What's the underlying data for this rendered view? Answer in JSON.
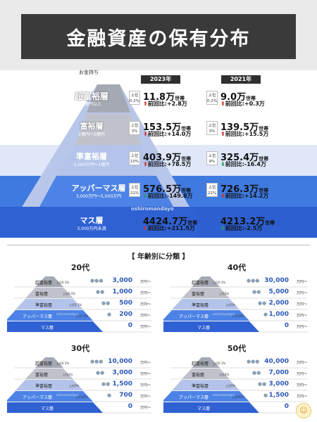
{
  "title": "金融資産の保有分布",
  "okane_label": "お金持ち",
  "years": [
    "2023年",
    "2021年"
  ],
  "watermark": "oshiromandayo",
  "tiers": [
    {
      "name": "超富裕層",
      "sub": "5億円以上",
      "r23": "上位\n0.2%",
      "v23": "11.8万",
      "c23": "前回比:+2.8万",
      "d23": "up",
      "r21": "上位\n0.2%",
      "v21": "9.0万",
      "c21": "前回比:+0.3万",
      "d21": "up"
    },
    {
      "name": "富裕層",
      "sub": "1億円〜5億円",
      "r23": "上位\n3%",
      "v23": "153.5万",
      "c23": "前回比:+14.0万",
      "d23": "up",
      "r21": "上位\n3%",
      "v21": "139.5万",
      "c21": "前回比:+15.5万",
      "d21": "up"
    },
    {
      "name": "準富裕層",
      "sub": "5,000万円〜1億円",
      "r23": "上位\n10%",
      "v23": "403.9万",
      "c23": "前回比:+78.5万",
      "d23": "up",
      "r21": "上位\n9%",
      "v21": "325.4万",
      "c21": "前回比:-16.4万",
      "d21": "dn"
    },
    {
      "name": "アッパーマス層",
      "sub": "3,000万円〜5,000万円",
      "r23": "上位\n21%",
      "v23": "576.5万",
      "c23": "前回比:-149.8万",
      "d23": "dn",
      "r21": "上位\n22%",
      "v21": "726.3万",
      "c21": "前回比:+14.2万",
      "d21": "up"
    },
    {
      "name": "マス層",
      "sub": "3,000万円未満",
      "r23": "",
      "v23": "4424.7万",
      "c23": "前回比:+211.5万",
      "d23": "up",
      "r21": "",
      "v21": "4213.2万",
      "c21": "前回比:-2.5万",
      "d21": "dn"
    }
  ],
  "unit_setai": "世帯",
  "bunrui": "【 年齢別に分類 】",
  "unit_man": "万円〜",
  "mini_tiers": [
    "超富裕層",
    "富裕層",
    "準富裕層",
    "アッパーマス層",
    "マス層"
  ],
  "ages": [
    {
      "title": "20代",
      "vals": [
        "3,000",
        "1,000",
        "500",
        "200",
        "0"
      ],
      "pcts": [
        "上位0.1%",
        "上位0.5%",
        "上位3.1%",
        "上位5.6%",
        ""
      ]
    },
    {
      "title": "40代",
      "vals": [
        "30,000",
        "5,000",
        "2,000",
        "1,000",
        "0"
      ],
      "pcts": [
        "上位0.1%",
        "上位1%",
        "上位5%",
        "上位10%",
        ""
      ]
    },
    {
      "title": "30代",
      "vals": [
        "10,000",
        "3,000",
        "1,500",
        "700",
        "0"
      ],
      "pcts": [
        "上位0.1%",
        "上位1%",
        "上位5%",
        "上位10%",
        ""
      ]
    },
    {
      "title": "50代",
      "vals": [
        "40,000",
        "7,000",
        "3,000",
        "1,500",
        "0"
      ],
      "pcts": [
        "上位0.1%",
        "上位1%",
        "上位5%",
        "上位10%",
        ""
      ]
    }
  ],
  "colors": {
    "apex": "#a5a9b3",
    "tier2": "#b9bcc4",
    "tier3": "#b9c7e8",
    "tier4": "#3f7ae0",
    "tier5": "#2d5fd0"
  }
}
